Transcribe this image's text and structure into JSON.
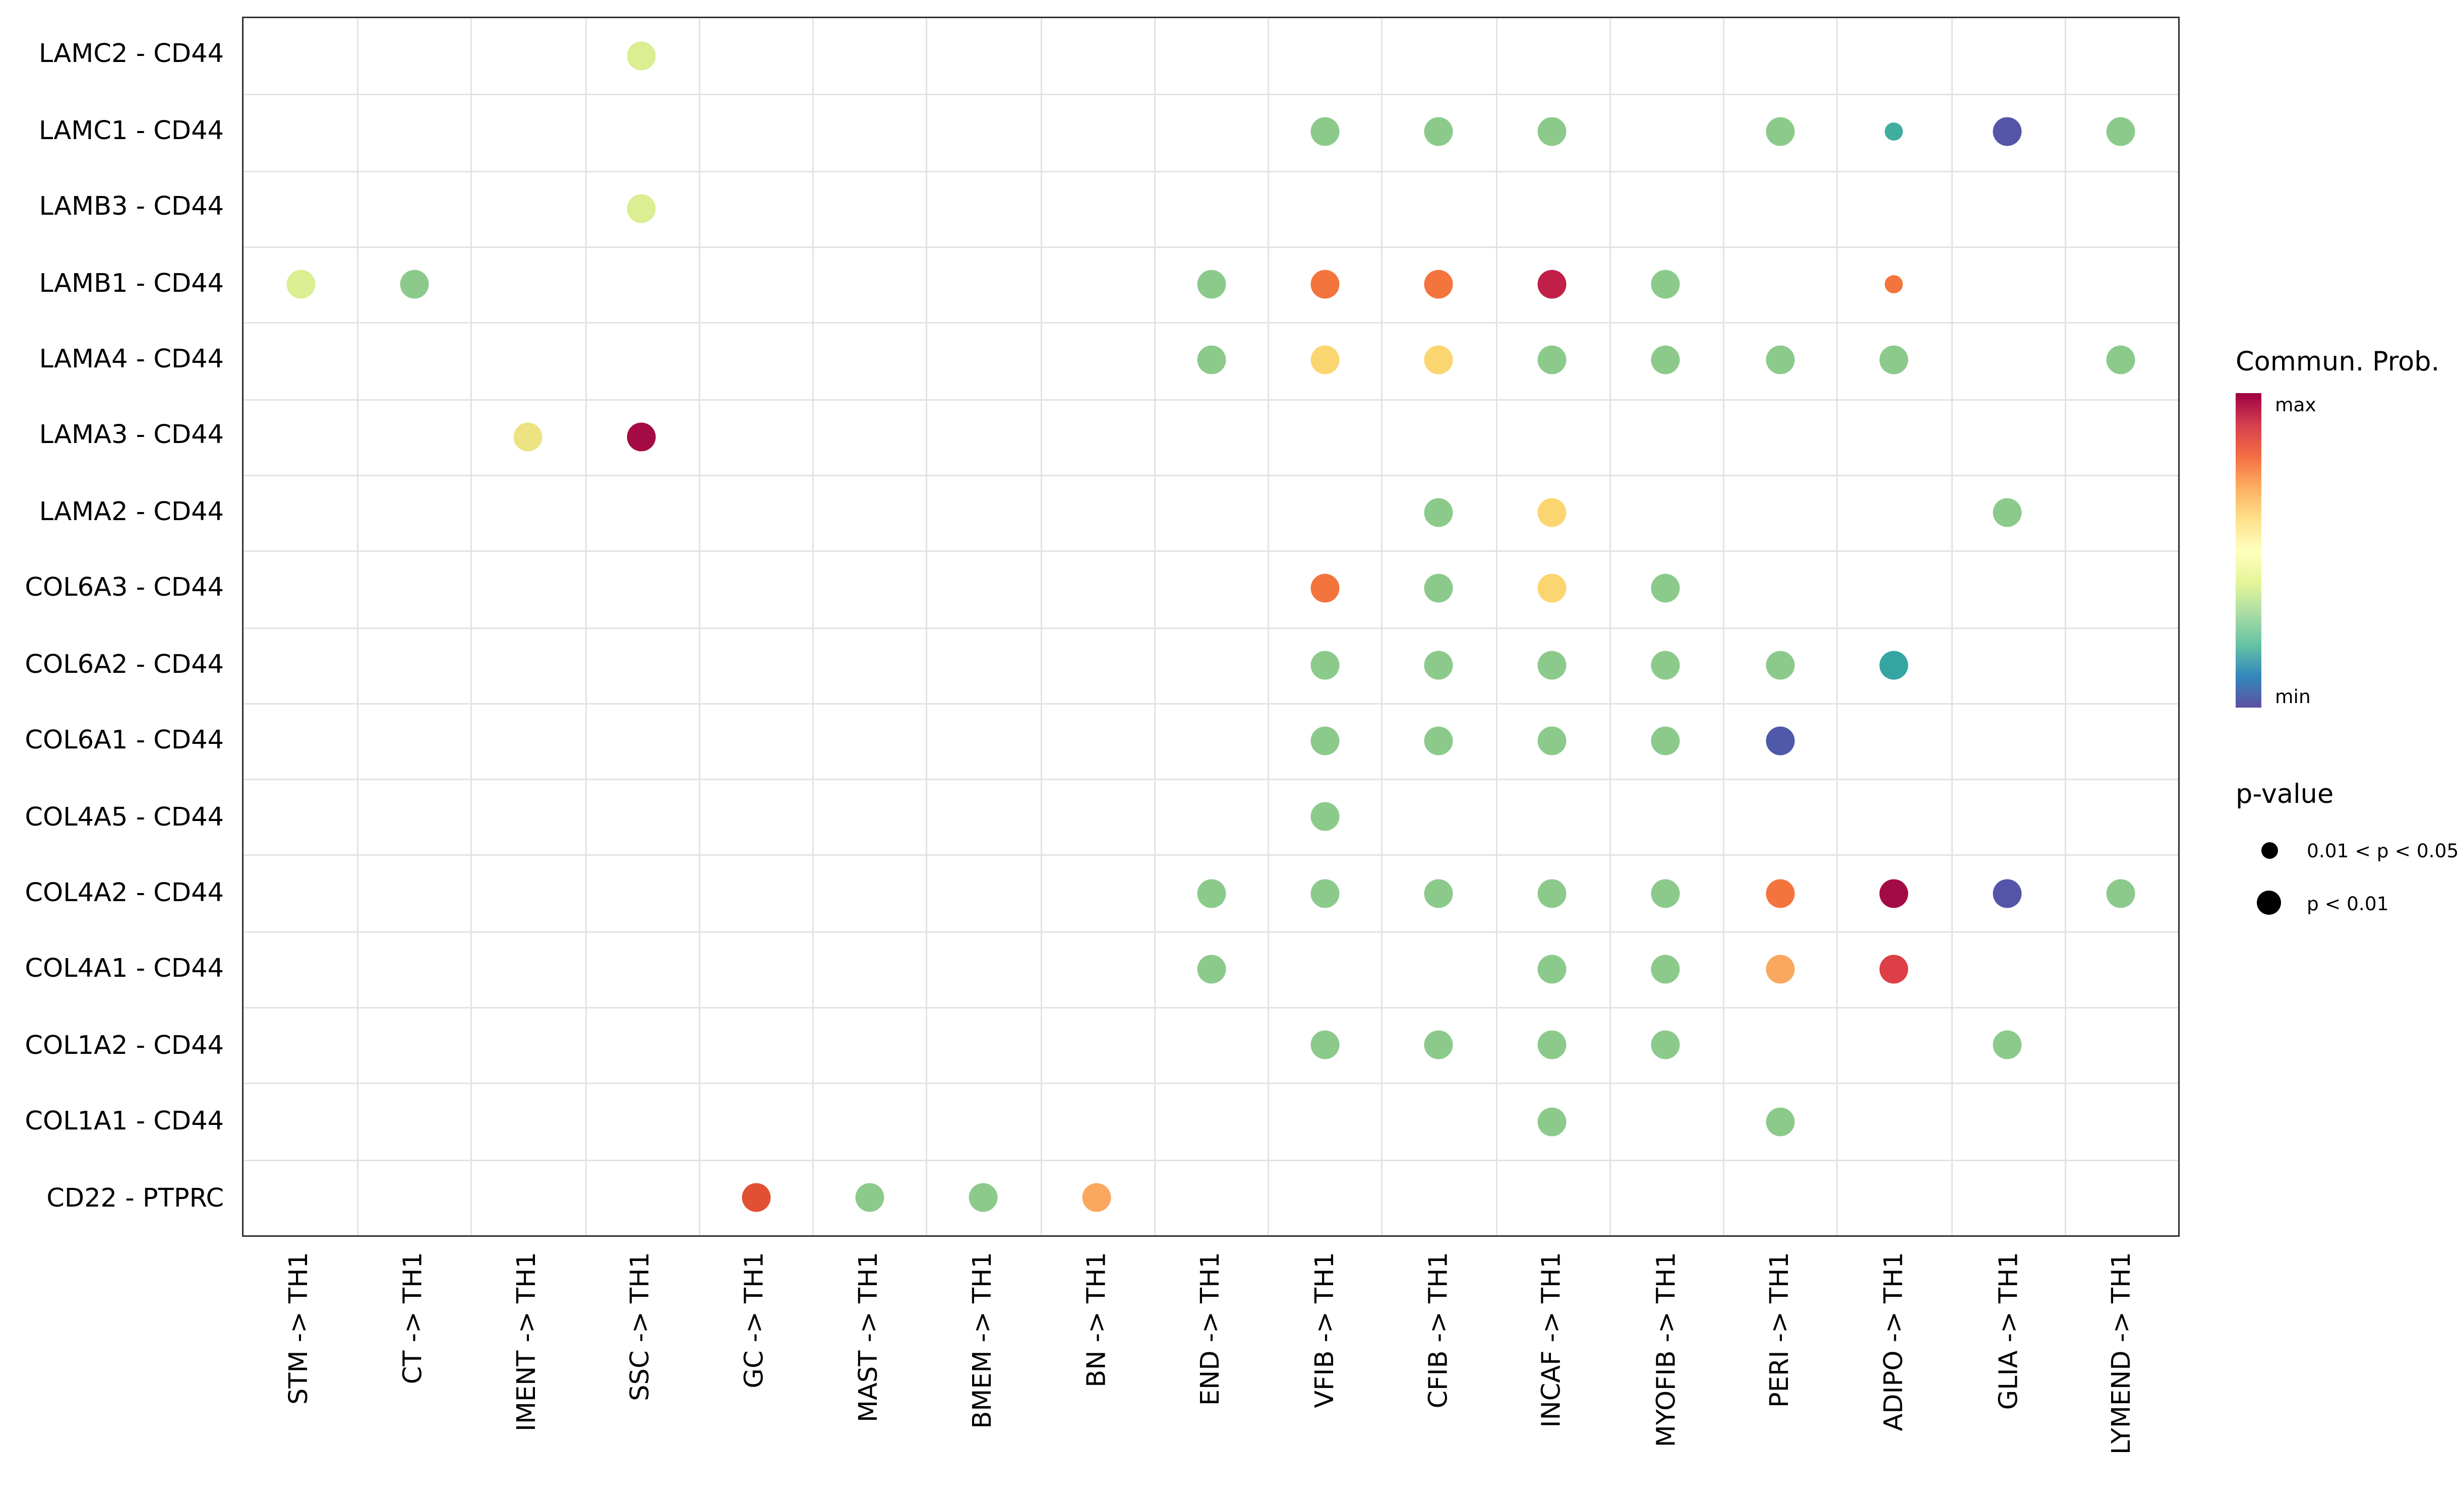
{
  "legend": {
    "colorbar_title": "Commun. Prob.",
    "max_label": "max",
    "min_label": "min",
    "colorbar_colors": [
      "#9E0142",
      "#D53E4F",
      "#F46D43",
      "#FDAE61",
      "#FEE08B",
      "#FFFFBF",
      "#E6F598",
      "#ABDDA4",
      "#66C2A5",
      "#3288BD",
      "#5E4FA2"
    ],
    "pvalue_title": "p-value",
    "pvalue_items": [
      {
        "label": "0.01 < p < 0.05",
        "size": "small"
      },
      {
        "label": "p < 0.01",
        "size": "large"
      }
    ]
  },
  "chart_data": {
    "type": "scatter",
    "subtype": "bubble-dot-plot",
    "title": "",
    "xlabel": "",
    "ylabel": "",
    "grid": true,
    "legend_position": "right",
    "color_scale": "Spectral reversed (min = blue-purple, max = dark red)",
    "size_legend": {
      "small": "0.01 < p < 0.05",
      "large": "p < 0.01"
    },
    "x_categories": [
      "STM -> TH1",
      "CT -> TH1",
      "IMENT -> TH1",
      "SSC -> TH1",
      "GC -> TH1",
      "MAST -> TH1",
      "BMEM -> TH1",
      "BN -> TH1",
      "END -> TH1",
      "VFIB -> TH1",
      "CFIB -> TH1",
      "INCAF -> TH1",
      "MYOFIB -> TH1",
      "PERI -> TH1",
      "ADIPO -> TH1",
      "GLIA -> TH1",
      "LYMEND -> TH1"
    ],
    "y_categories": [
      "LAMC2 - CD44",
      "LAMC1 - CD44",
      "LAMB3 - CD44",
      "LAMB1 - CD44",
      "LAMA4 - CD44",
      "LAMA3 - CD44",
      "LAMA2 - CD44",
      "COL6A3 - CD44",
      "COL6A2 - CD44",
      "COL6A1 - CD44",
      "COL4A5 - CD44",
      "COL4A2 - CD44",
      "COL4A1 - CD44",
      "COL1A2 - CD44",
      "COL1A1 - CD44",
      "CD22 - PTPRC"
    ],
    "points": [
      {
        "x": "SSC -> TH1",
        "y": "LAMC2 - CD44",
        "color": "#DBEE91",
        "size": "large"
      },
      {
        "x": "VFIB -> TH1",
        "y": "LAMC1 - CD44",
        "color": "#8CCA8C",
        "size": "large"
      },
      {
        "x": "CFIB -> TH1",
        "y": "LAMC1 - CD44",
        "color": "#8CCA8C",
        "size": "large"
      },
      {
        "x": "INCAF -> TH1",
        "y": "LAMC1 - CD44",
        "color": "#8CCA8C",
        "size": "large"
      },
      {
        "x": "PERI -> TH1",
        "y": "LAMC1 - CD44",
        "color": "#8CCA8C",
        "size": "large"
      },
      {
        "x": "ADIPO -> TH1",
        "y": "LAMC1 - CD44",
        "color": "#3FAE9F",
        "size": "small"
      },
      {
        "x": "GLIA -> TH1",
        "y": "LAMC1 - CD44",
        "color": "#5455A8",
        "size": "large"
      },
      {
        "x": "LYMEND -> TH1",
        "y": "LAMC1 - CD44",
        "color": "#8CCA8C",
        "size": "large"
      },
      {
        "x": "SSC -> TH1",
        "y": "LAMB3 - CD44",
        "color": "#DBEE91",
        "size": "large"
      },
      {
        "x": "STM -> TH1",
        "y": "LAMB1 - CD44",
        "color": "#DBEE91",
        "size": "large"
      },
      {
        "x": "CT -> TH1",
        "y": "LAMB1 - CD44",
        "color": "#8CCA8C",
        "size": "large"
      },
      {
        "x": "END -> TH1",
        "y": "LAMB1 - CD44",
        "color": "#8CCA8C",
        "size": "large"
      },
      {
        "x": "VFIB -> TH1",
        "y": "LAMB1 - CD44",
        "color": "#F4743E",
        "size": "large"
      },
      {
        "x": "CFIB -> TH1",
        "y": "LAMB1 - CD44",
        "color": "#F4743E",
        "size": "large"
      },
      {
        "x": "INCAF -> TH1",
        "y": "LAMB1 - CD44",
        "color": "#C11F47",
        "size": "large"
      },
      {
        "x": "MYOFIB -> TH1",
        "y": "LAMB1 - CD44",
        "color": "#8CCA8C",
        "size": "large"
      },
      {
        "x": "ADIPO -> TH1",
        "y": "LAMB1 - CD44",
        "color": "#F4743E",
        "size": "small"
      },
      {
        "x": "END -> TH1",
        "y": "LAMA4 - CD44",
        "color": "#8CCA8C",
        "size": "large"
      },
      {
        "x": "VFIB -> TH1",
        "y": "LAMA4 - CD44",
        "color": "#FBD570",
        "size": "large"
      },
      {
        "x": "CFIB -> TH1",
        "y": "LAMA4 - CD44",
        "color": "#FBD570",
        "size": "large"
      },
      {
        "x": "INCAF -> TH1",
        "y": "LAMA4 - CD44",
        "color": "#8CCA8C",
        "size": "large"
      },
      {
        "x": "MYOFIB -> TH1",
        "y": "LAMA4 - CD44",
        "color": "#8CCA8C",
        "size": "large"
      },
      {
        "x": "PERI -> TH1",
        "y": "LAMA4 - CD44",
        "color": "#8CCA8C",
        "size": "large"
      },
      {
        "x": "ADIPO -> TH1",
        "y": "LAMA4 - CD44",
        "color": "#8CCA8C",
        "size": "large"
      },
      {
        "x": "LYMEND -> TH1",
        "y": "LAMA4 - CD44",
        "color": "#8CCA8C",
        "size": "large"
      },
      {
        "x": "IMENT -> TH1",
        "y": "LAMA3 - CD44",
        "color": "#EDE382",
        "size": "large"
      },
      {
        "x": "SSC -> TH1",
        "y": "LAMA3 - CD44",
        "color": "#A40B44",
        "size": "large"
      },
      {
        "x": "CFIB -> TH1",
        "y": "LAMA2 - CD44",
        "color": "#8CCA8C",
        "size": "large"
      },
      {
        "x": "INCAF -> TH1",
        "y": "LAMA2 - CD44",
        "color": "#FBD570",
        "size": "large"
      },
      {
        "x": "GLIA -> TH1",
        "y": "LAMA2 - CD44",
        "color": "#8CCA8C",
        "size": "large"
      },
      {
        "x": "VFIB -> TH1",
        "y": "COL6A3 - CD44",
        "color": "#F4743E",
        "size": "large"
      },
      {
        "x": "CFIB -> TH1",
        "y": "COL6A3 - CD44",
        "color": "#8CCA8C",
        "size": "large"
      },
      {
        "x": "INCAF -> TH1",
        "y": "COL6A3 - CD44",
        "color": "#FBD570",
        "size": "large"
      },
      {
        "x": "MYOFIB -> TH1",
        "y": "COL6A3 - CD44",
        "color": "#8CCA8C",
        "size": "large"
      },
      {
        "x": "VFIB -> TH1",
        "y": "COL6A2 - CD44",
        "color": "#8CCA8C",
        "size": "large"
      },
      {
        "x": "CFIB -> TH1",
        "y": "COL6A2 - CD44",
        "color": "#8CCA8C",
        "size": "large"
      },
      {
        "x": "INCAF -> TH1",
        "y": "COL6A2 - CD44",
        "color": "#8CCA8C",
        "size": "large"
      },
      {
        "x": "MYOFIB -> TH1",
        "y": "COL6A2 - CD44",
        "color": "#8CCA8C",
        "size": "large"
      },
      {
        "x": "PERI -> TH1",
        "y": "COL6A2 - CD44",
        "color": "#8CCA8C",
        "size": "large"
      },
      {
        "x": "ADIPO -> TH1",
        "y": "COL6A2 - CD44",
        "color": "#35A5A2",
        "size": "large"
      },
      {
        "x": "VFIB -> TH1",
        "y": "COL6A1 - CD44",
        "color": "#8CCA8C",
        "size": "large"
      },
      {
        "x": "CFIB -> TH1",
        "y": "COL6A1 - CD44",
        "color": "#8CCA8C",
        "size": "large"
      },
      {
        "x": "INCAF -> TH1",
        "y": "COL6A1 - CD44",
        "color": "#8CCA8C",
        "size": "large"
      },
      {
        "x": "MYOFIB -> TH1",
        "y": "COL6A1 - CD44",
        "color": "#8CCA8C",
        "size": "large"
      },
      {
        "x": "PERI -> TH1",
        "y": "COL6A1 - CD44",
        "color": "#4E59A9",
        "size": "large"
      },
      {
        "x": "VFIB -> TH1",
        "y": "COL4A5 - CD44",
        "color": "#8CCA8C",
        "size": "large"
      },
      {
        "x": "END -> TH1",
        "y": "COL4A2 - CD44",
        "color": "#8CCA8C",
        "size": "large"
      },
      {
        "x": "VFIB -> TH1",
        "y": "COL4A2 - CD44",
        "color": "#8CCA8C",
        "size": "large"
      },
      {
        "x": "CFIB -> TH1",
        "y": "COL4A2 - CD44",
        "color": "#8CCA8C",
        "size": "large"
      },
      {
        "x": "INCAF -> TH1",
        "y": "COL4A2 - CD44",
        "color": "#8CCA8C",
        "size": "large"
      },
      {
        "x": "MYOFIB -> TH1",
        "y": "COL4A2 - CD44",
        "color": "#8CCA8C",
        "size": "large"
      },
      {
        "x": "PERI -> TH1",
        "y": "COL4A2 - CD44",
        "color": "#F4743E",
        "size": "large"
      },
      {
        "x": "ADIPO -> TH1",
        "y": "COL4A2 - CD44",
        "color": "#A40B44",
        "size": "large"
      },
      {
        "x": "GLIA -> TH1",
        "y": "COL4A2 - CD44",
        "color": "#5455A8",
        "size": "large"
      },
      {
        "x": "LYMEND -> TH1",
        "y": "COL4A2 - CD44",
        "color": "#8CCA8C",
        "size": "large"
      },
      {
        "x": "END -> TH1",
        "y": "COL4A1 - CD44",
        "color": "#8CCA8C",
        "size": "large"
      },
      {
        "x": "INCAF -> TH1",
        "y": "COL4A1 - CD44",
        "color": "#8CCA8C",
        "size": "large"
      },
      {
        "x": "MYOFIB -> TH1",
        "y": "COL4A1 - CD44",
        "color": "#8CCA8C",
        "size": "large"
      },
      {
        "x": "PERI -> TH1",
        "y": "COL4A1 - CD44",
        "color": "#FAA85F",
        "size": "large"
      },
      {
        "x": "ADIPO -> TH1",
        "y": "COL4A1 - CD44",
        "color": "#DC3F45",
        "size": "large"
      },
      {
        "x": "VFIB -> TH1",
        "y": "COL1A2 - CD44",
        "color": "#8CCA8C",
        "size": "large"
      },
      {
        "x": "CFIB -> TH1",
        "y": "COL1A2 - CD44",
        "color": "#8CCA8C",
        "size": "large"
      },
      {
        "x": "INCAF -> TH1",
        "y": "COL1A2 - CD44",
        "color": "#8CCA8C",
        "size": "large"
      },
      {
        "x": "MYOFIB -> TH1",
        "y": "COL1A2 - CD44",
        "color": "#8CCA8C",
        "size": "large"
      },
      {
        "x": "GLIA -> TH1",
        "y": "COL1A2 - CD44",
        "color": "#8CCA8C",
        "size": "large"
      },
      {
        "x": "INCAF -> TH1",
        "y": "COL1A1 - CD44",
        "color": "#8CCA8C",
        "size": "large"
      },
      {
        "x": "PERI -> TH1",
        "y": "COL1A1 - CD44",
        "color": "#8CCA8C",
        "size": "large"
      },
      {
        "x": "GC -> TH1",
        "y": "CD22 - PTPRC",
        "color": "#E25034",
        "size": "large"
      },
      {
        "x": "MAST -> TH1",
        "y": "CD22 - PTPRC",
        "color": "#8CCA8C",
        "size": "large"
      },
      {
        "x": "BMEM -> TH1",
        "y": "CD22 - PTPRC",
        "color": "#8CCA8C",
        "size": "large"
      },
      {
        "x": "BN -> TH1",
        "y": "CD22 - PTPRC",
        "color": "#FAA85F",
        "size": "large"
      }
    ]
  }
}
